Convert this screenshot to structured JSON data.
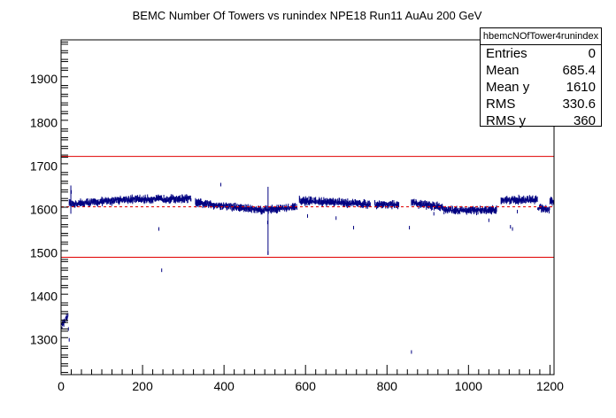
{
  "chart_data": {
    "type": "scatter",
    "title": "BEMC Number Of Towers vs runindex NPE18 Run11 AuAu 200 GeV",
    "xlabel": "",
    "ylabel": "",
    "xlim": [
      0,
      1210
    ],
    "ylim": [
      1220,
      1990
    ],
    "x_ticks": [
      0,
      200,
      400,
      600,
      800,
      1000,
      1200
    ],
    "y_ticks": [
      1300,
      1400,
      1500,
      1600,
      1700,
      1800,
      1900
    ],
    "grid": false,
    "reference_lines": {
      "upper": 1722,
      "lower": 1490,
      "mean": 1606
    },
    "series": [
      {
        "color": "#000080",
        "segments": [
          {
            "x": [
              0,
              18
            ],
            "y": [
              1330,
              1355
            ],
            "spread": 10
          },
          {
            "x": [
              20,
              130
            ],
            "y": [
              1612,
              1620
            ],
            "spread": 8
          },
          {
            "x": [
              130,
              320
            ],
            "y": [
              1622,
              1625
            ],
            "spread": 8
          },
          {
            "x": [
              330,
              500
            ],
            "y": [
              1615,
              1598
            ],
            "spread": 8
          },
          {
            "x": [
              500,
              580
            ],
            "y": [
              1600,
              1605
            ],
            "spread": 8
          },
          {
            "x": [
              585,
              760
            ],
            "y": [
              1620,
              1612
            ],
            "spread": 8
          },
          {
            "x": [
              770,
              830
            ],
            "y": [
              1612,
              1610
            ],
            "spread": 8
          },
          {
            "x": [
              860,
              940
            ],
            "y": [
              1615,
              1605
            ],
            "spread": 8
          },
          {
            "x": [
              940,
              1070
            ],
            "y": [
              1598,
              1598
            ],
            "spread": 8
          },
          {
            "x": [
              1080,
              1170
            ],
            "y": [
              1622,
              1622
            ],
            "spread": 8
          },
          {
            "x": [
              1170,
              1200
            ],
            "y": [
              1605,
              1600
            ],
            "spread": 8
          },
          {
            "x": [
              1200,
              1210
            ],
            "y": [
              1620,
              1618
            ],
            "spread": 6
          }
        ],
        "outliers": [
          {
            "x": 20,
            "y": 1300
          },
          {
            "x": 18,
            "y": 1325
          },
          {
            "x": 25,
            "y": 1640
          },
          {
            "x": 247,
            "y": 1460
          },
          {
            "x": 392,
            "y": 1657
          },
          {
            "x": 508,
            "y": 1500
          },
          {
            "x": 507,
            "y": 1570
          },
          {
            "x": 860,
            "y": 1272
          },
          {
            "x": 240,
            "y": 1555
          },
          {
            "x": 718,
            "y": 1558
          },
          {
            "x": 605,
            "y": 1585
          },
          {
            "x": 675,
            "y": 1580
          },
          {
            "x": 855,
            "y": 1558
          },
          {
            "x": 1050,
            "y": 1575
          },
          {
            "x": 1108,
            "y": 1555
          },
          {
            "x": 1103,
            "y": 1560
          },
          {
            "x": 915,
            "y": 1590
          },
          {
            "x": 1120,
            "y": 1595
          }
        ]
      }
    ]
  },
  "stats": {
    "name": "hbemcNOfTower4runindex",
    "rows": [
      {
        "label": "Entries",
        "value": "0"
      },
      {
        "label": "Mean",
        "value": "685.4"
      },
      {
        "label": "Mean y",
        "value": "1610"
      },
      {
        "label": "RMS",
        "value": "330.6"
      },
      {
        "label": "RMS y",
        "value": "360"
      }
    ]
  }
}
